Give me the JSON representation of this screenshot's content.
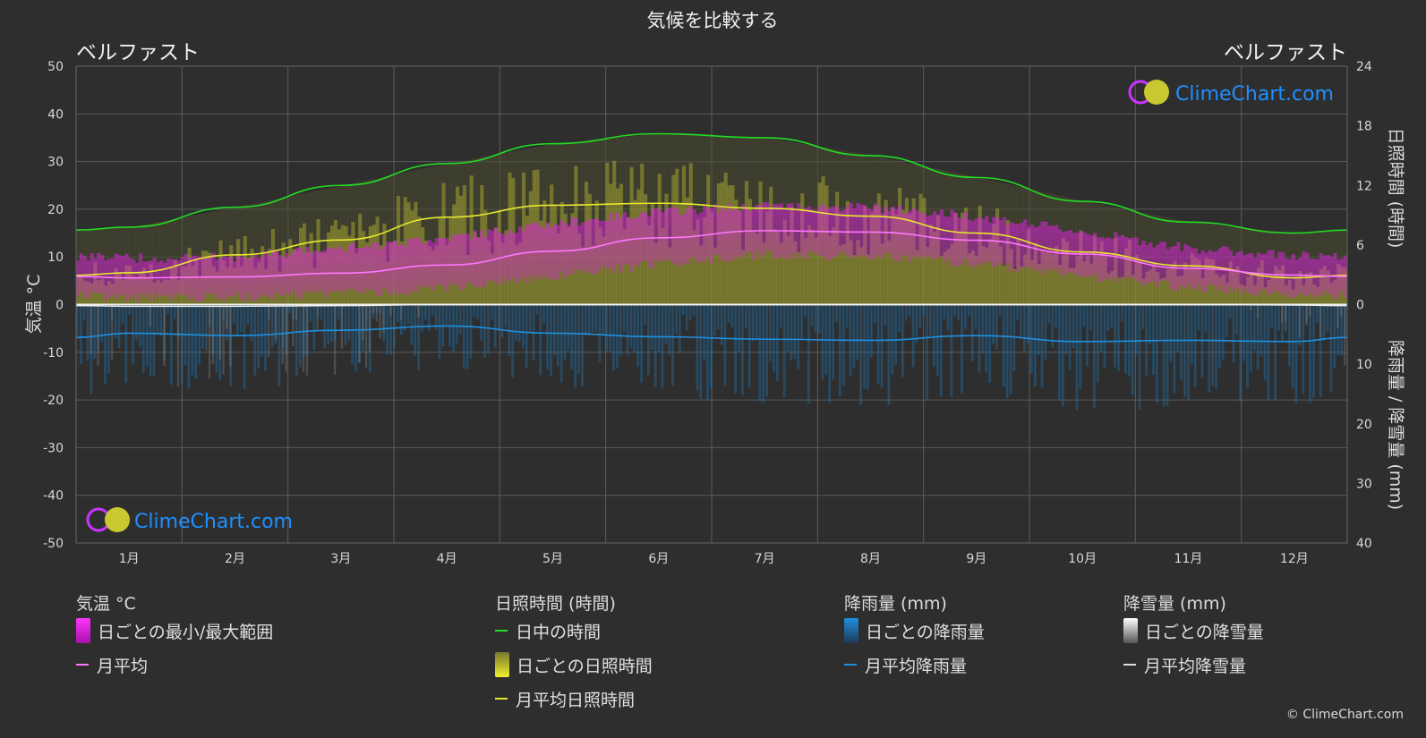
{
  "title": "気候を比較する",
  "city_left": "ベルファスト",
  "city_right": "ベルファスト",
  "axis_left_label": "気温 °C",
  "axis_right_top_label": "日照時間 (時間)",
  "axis_right_bottom_label": "降雨量 / 降雪量 (mm)",
  "watermark": "ClimeChart.com",
  "copyright": "© ClimeChart.com",
  "colors": {
    "background": "#2e2e2e",
    "daylight": "#22dd22",
    "sunshine": "#e8e830",
    "temp_range": "#dd22dd",
    "temp_avg": "#ff77ff",
    "rain": "#1e90e0",
    "snow": "#cccccc",
    "watermark": "#1e90ff"
  },
  "legend": {
    "temperature": {
      "title": "気温 °C",
      "items": [
        "日ごとの最小/最大範囲",
        "月平均"
      ]
    },
    "sunshine": {
      "title": "日照時間 (時間)",
      "items": [
        "日中の時間",
        "日ごとの日照時間",
        "月平均日照時間"
      ]
    },
    "rain": {
      "title": "降雨量 (mm)",
      "items": [
        "日ごとの降雨量",
        "月平均降雨量"
      ]
    },
    "snow": {
      "title": "降雪量 (mm)",
      "items": [
        "日ごとの降雪量",
        "月平均降雪量"
      ]
    }
  },
  "chart_data": {
    "type": "line",
    "categories": [
      "1月",
      "2月",
      "3月",
      "4月",
      "5月",
      "6月",
      "7月",
      "8月",
      "9月",
      "10月",
      "11月",
      "12月"
    ],
    "left_axis": {
      "label": "気温 °C",
      "range": [
        -50,
        50
      ],
      "ticks": [
        50,
        40,
        30,
        20,
        10,
        0,
        -10,
        -20,
        -30,
        -40,
        -50
      ]
    },
    "right_axis_top": {
      "label": "日照時間 (時間)",
      "range": [
        0,
        24
      ],
      "ticks": [
        24,
        18,
        12,
        6,
        0
      ]
    },
    "right_axis_bottom": {
      "label": "降雨量 / 降雪量 (mm)",
      "range": [
        0,
        40
      ],
      "ticks": [
        0,
        10,
        20,
        30,
        40
      ]
    },
    "grid": true,
    "series": [
      {
        "name": "日中の時間",
        "axis": "sunshine_hours",
        "values": [
          7.8,
          9.8,
          12.0,
          14.2,
          16.2,
          17.2,
          16.8,
          15.0,
          12.8,
          10.4,
          8.3,
          7.2
        ]
      },
      {
        "name": "月平均日照時間",
        "axis": "sunshine_hours",
        "values": [
          3.2,
          5.0,
          6.5,
          8.8,
          10.0,
          10.2,
          9.7,
          8.9,
          7.2,
          5.3,
          3.9,
          2.7
        ]
      },
      {
        "name": "月平均",
        "axis": "temperature_c",
        "values": [
          5.6,
          5.8,
          6.6,
          8.3,
          11.2,
          14.0,
          15.5,
          15.2,
          13.5,
          10.6,
          7.6,
          6.2
        ]
      },
      {
        "name": "日ごとの最小/最大範囲",
        "axis": "temperature_c",
        "min": [
          2.5,
          2.5,
          3.2,
          4.5,
          6.8,
          9.6,
          11.4,
          11.2,
          9.5,
          7.0,
          4.5,
          3.2
        ],
        "max": [
          8.7,
          9.0,
          10.8,
          13.0,
          16.0,
          18.5,
          19.7,
          19.4,
          17.5,
          14.2,
          10.8,
          9.2
        ]
      },
      {
        "name": "月平均降雨量",
        "axis": "precipitation_mm",
        "values": [
          4.8,
          5.2,
          4.3,
          3.6,
          4.8,
          5.4,
          5.8,
          6.0,
          5.2,
          6.2,
          6.0,
          6.2
        ]
      },
      {
        "name": "月平均降雪量",
        "axis": "precipitation_mm",
        "values": [
          0.3,
          0.3,
          0.2,
          0.0,
          0.0,
          0.0,
          0.0,
          0.0,
          0.0,
          0.0,
          0.0,
          0.1
        ]
      }
    ]
  }
}
